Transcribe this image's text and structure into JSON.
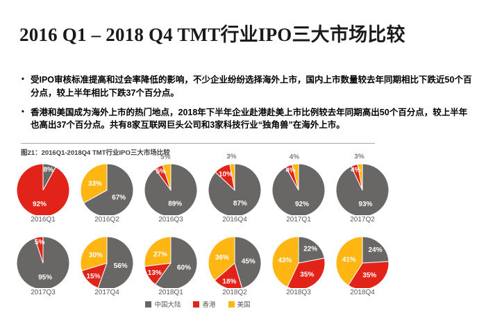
{
  "page": {
    "title": "2016 Q1 – 2018 Q4 TMT行业IPO三大市场比较",
    "bullets": [
      "受IPO审核标准提高和过会率降低的影响，不少企业纷纷选择海外上市，国内上市数量较去年同期相比下跌近50个百分点，较上半年相比下跌37个百分点。",
      "香港和美国成为海外上市的热门地点，2018年下半年企业赴港赴美上市比例较去年同期高出50个百分点，较上半年也高出37个百分点。共有8家互联网巨头公司和3家科技行业“独角兽”在海外上市。"
    ]
  },
  "chart_data": {
    "type": "pie",
    "title": "图21：2016Q1-2018Q4 TMT行业IPO三大市场比较",
    "legend_position": "bottom",
    "value_unit": "%",
    "series": [
      {
        "id": "mainland",
        "name": "中国大陆",
        "color": "#696765"
      },
      {
        "id": "hongkong",
        "name": "香港",
        "color": "#e2231a"
      },
      {
        "id": "usa",
        "name": "美国",
        "color": "#ffb612"
      }
    ],
    "pies": [
      {
        "label": "2016Q1",
        "values": [
          8,
          92,
          0
        ]
      },
      {
        "label": "2016Q2",
        "values": [
          67,
          0,
          33
        ]
      },
      {
        "label": "2016Q3",
        "values": [
          89,
          5,
          5
        ]
      },
      {
        "label": "2016Q4",
        "values": [
          87,
          10,
          3
        ]
      },
      {
        "label": "2017Q1",
        "values": [
          92,
          4,
          4
        ]
      },
      {
        "label": "2017Q2",
        "values": [
          93,
          4,
          3
        ]
      },
      {
        "label": "2017Q3",
        "values": [
          95,
          5,
          0
        ]
      },
      {
        "label": "2017Q4",
        "values": [
          56,
          15,
          30
        ]
      },
      {
        "label": "2018Q1",
        "values": [
          60,
          13,
          27
        ]
      },
      {
        "label": "2018Q2",
        "values": [
          45,
          18,
          36
        ]
      },
      {
        "label": "2018Q3",
        "values": [
          22,
          35,
          43
        ]
      },
      {
        "label": "2018Q4",
        "values": [
          24,
          35,
          41
        ]
      }
    ]
  }
}
